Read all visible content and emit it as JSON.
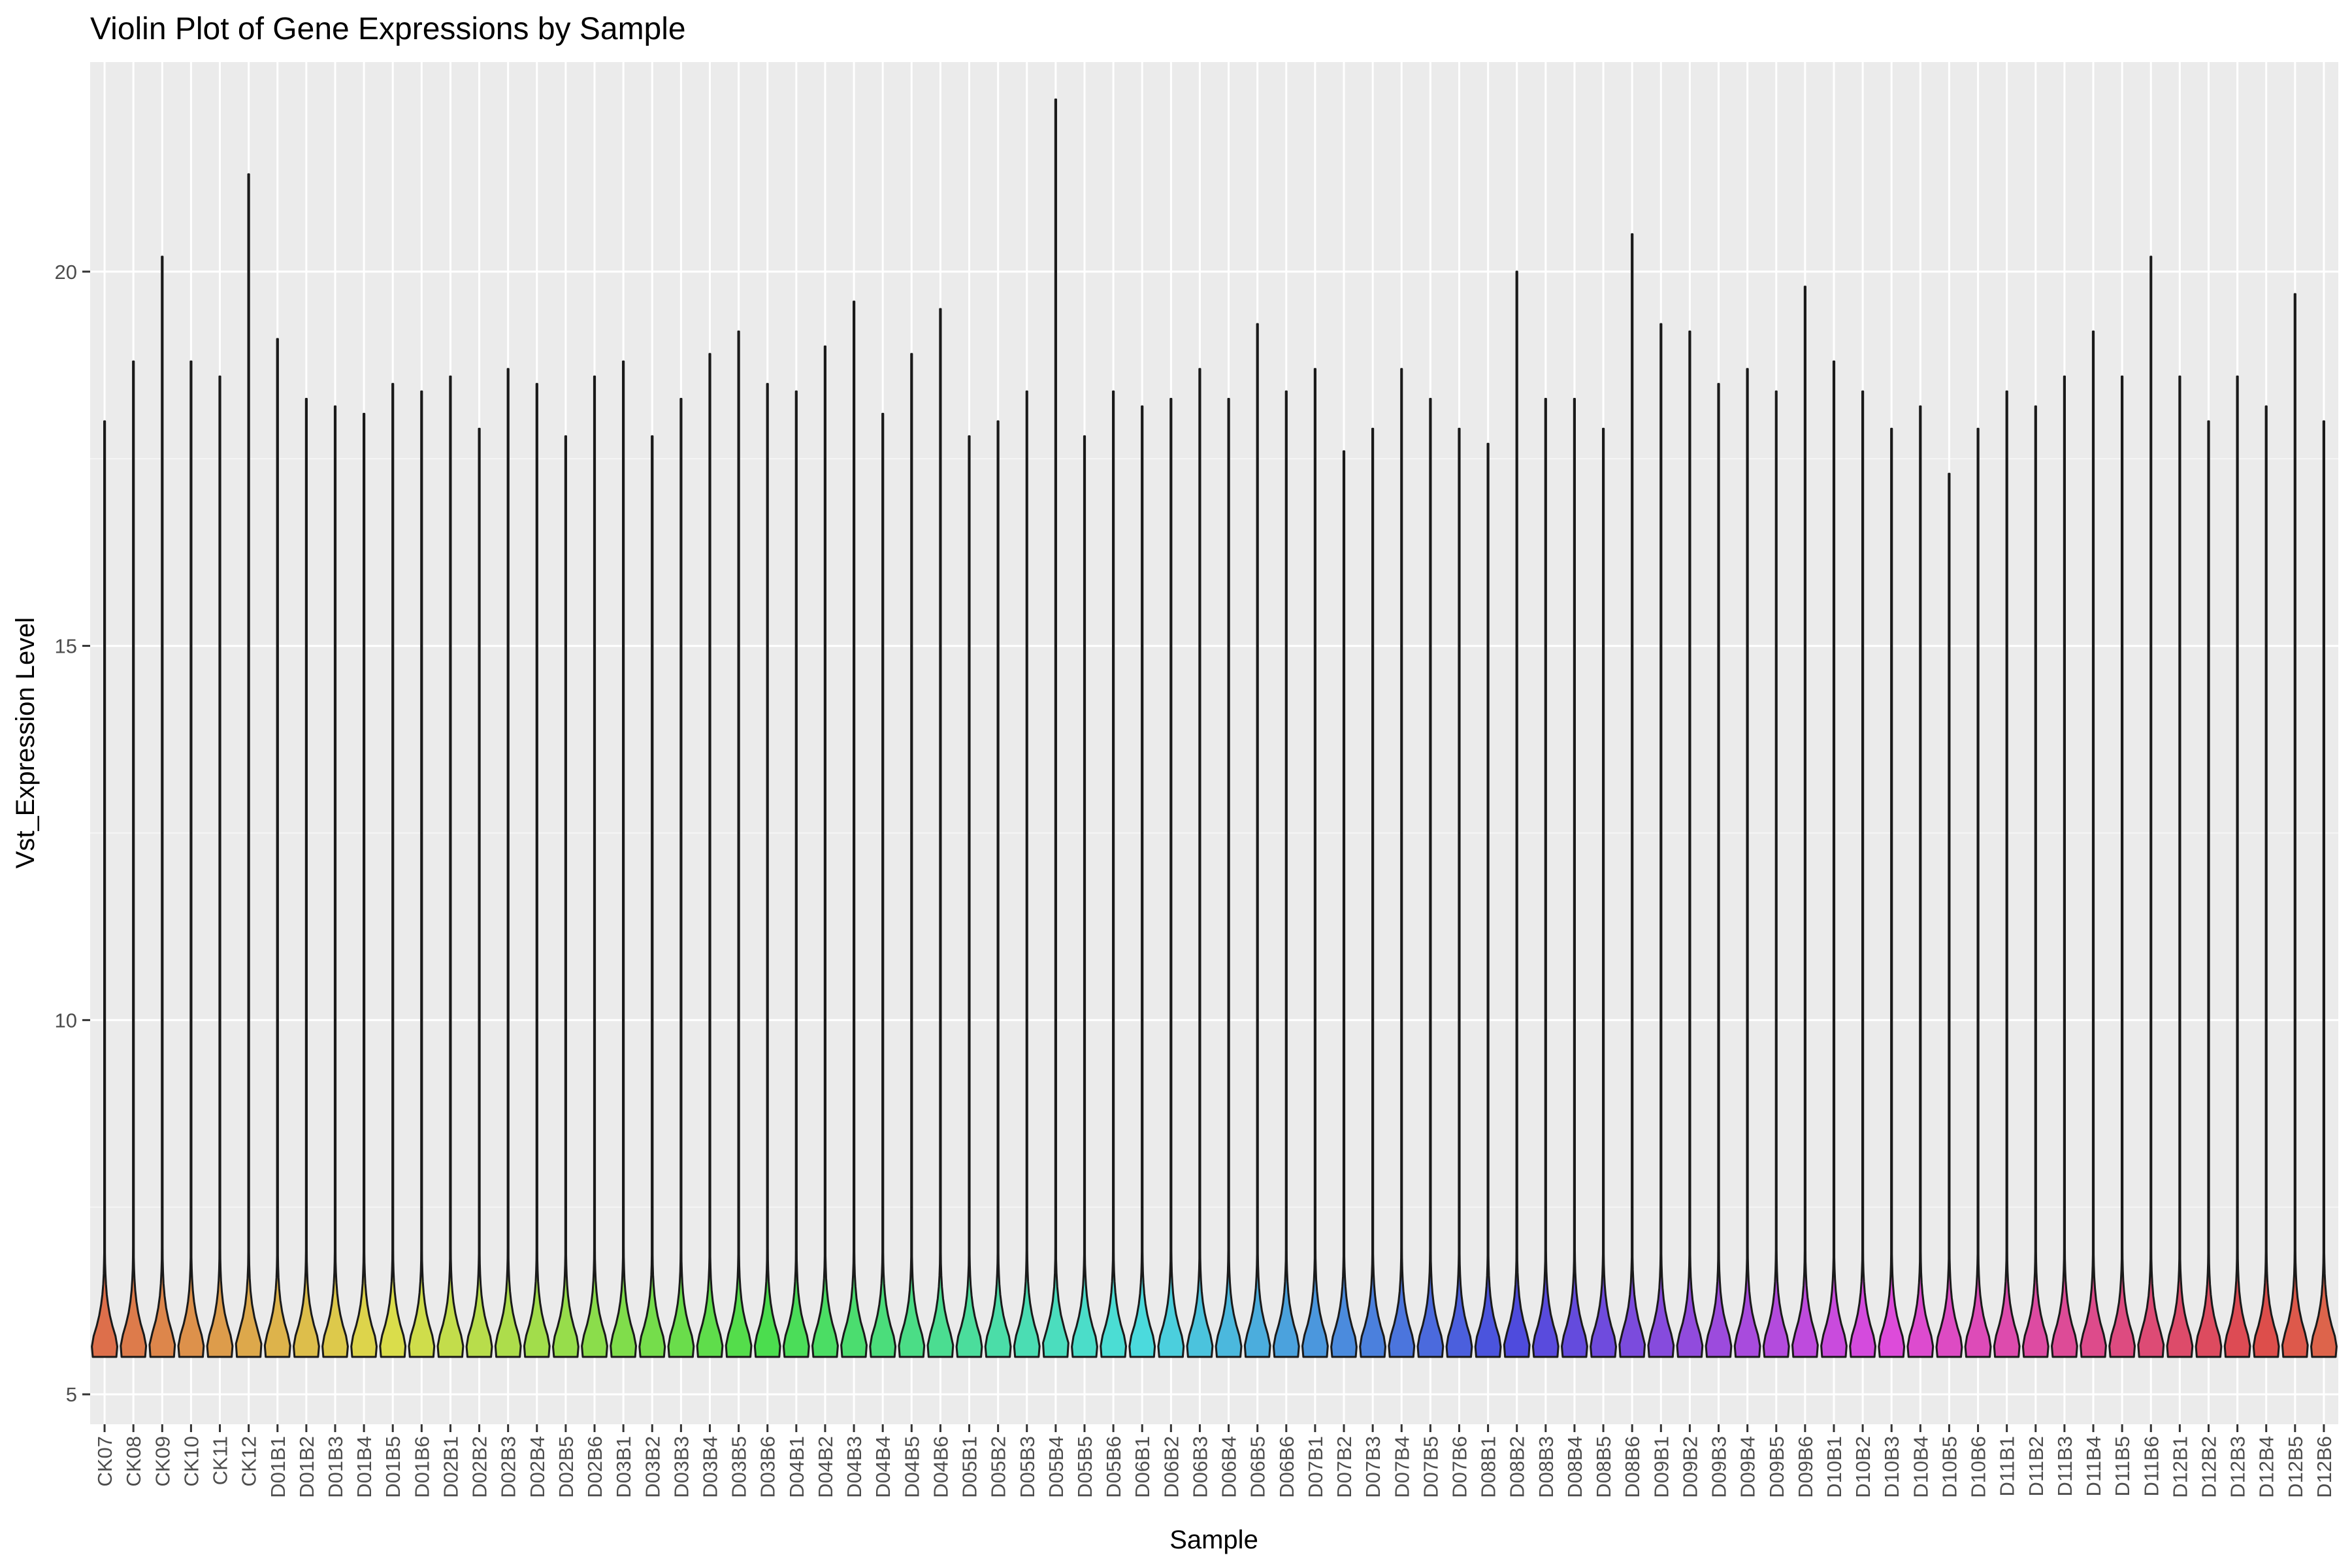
{
  "chart_data": {
    "type": "violin",
    "title": "Violin Plot of Gene Expressions by Sample",
    "xlabel": "Sample",
    "ylabel": "Vst_Expression Level",
    "ylim": [
      4.6,
      22.8
    ],
    "y_ticks": [
      5,
      10,
      15,
      20
    ],
    "grid": true,
    "legend": "none",
    "colors": {
      "panel_background": "#EBEBEB",
      "grid_major": "#FFFFFF",
      "grid_minor": "#F5F5F5",
      "violin_outline": "#1a1a1a"
    },
    "baseline_min": 5.5,
    "categories": [
      "CK07",
      "CK08",
      "CK09",
      "CK10",
      "CK11",
      "CK12",
      "D01B1",
      "D01B2",
      "D01B3",
      "D01B4",
      "D01B5",
      "D01B6",
      "D02B1",
      "D02B2",
      "D02B3",
      "D02B4",
      "D02B5",
      "D02B6",
      "D03B1",
      "D03B2",
      "D03B3",
      "D03B4",
      "D03B5",
      "D03B6",
      "D04B1",
      "D04B2",
      "D04B3",
      "D04B4",
      "D04B5",
      "D04B6",
      "D05B1",
      "D05B2",
      "D05B3",
      "D05B4",
      "D05B5",
      "D05B6",
      "D06B1",
      "D06B2",
      "D06B3",
      "D06B4",
      "D06B5",
      "D06B6",
      "D07B1",
      "D07B2",
      "D07B3",
      "D07B4",
      "D07B5",
      "D07B6",
      "D08B1",
      "D08B2",
      "D08B3",
      "D08B4",
      "D08B5",
      "D08B6",
      "D09B1",
      "D09B2",
      "D09B3",
      "D09B4",
      "D09B5",
      "D09B6",
      "D10B1",
      "D10B2",
      "D10B3",
      "D10B4",
      "D10B5",
      "D10B6",
      "D11B1",
      "D11B2",
      "D11B3",
      "D11B4",
      "D11B5",
      "D11B6",
      "D12B1",
      "D12B2",
      "D12B3",
      "D12B4",
      "D12B5",
      "D12B6"
    ],
    "max_values": [
      18.0,
      18.8,
      20.2,
      18.8,
      18.6,
      21.3,
      19.1,
      18.3,
      18.2,
      18.1,
      18.5,
      18.4,
      18.6,
      17.9,
      18.7,
      18.5,
      17.8,
      18.6,
      18.8,
      17.8,
      18.3,
      18.9,
      19.2,
      18.5,
      18.4,
      19.0,
      19.6,
      18.1,
      18.9,
      19.5,
      17.8,
      18.0,
      18.4,
      22.3,
      17.8,
      18.4,
      18.2,
      18.3,
      18.7,
      18.3,
      19.3,
      18.4,
      18.7,
      17.6,
      17.9,
      18.7,
      18.3,
      17.9,
      17.7,
      20.0,
      18.3,
      18.3,
      17.9,
      20.5,
      19.3,
      19.2,
      18.5,
      18.7,
      18.4,
      19.8,
      18.8,
      18.4,
      17.9,
      18.2,
      17.3,
      17.9,
      18.4,
      18.2,
      18.6,
      19.2,
      18.6,
      20.2,
      18.6,
      18.0,
      18.6,
      18.2,
      19.7,
      18.0
    ]
  }
}
